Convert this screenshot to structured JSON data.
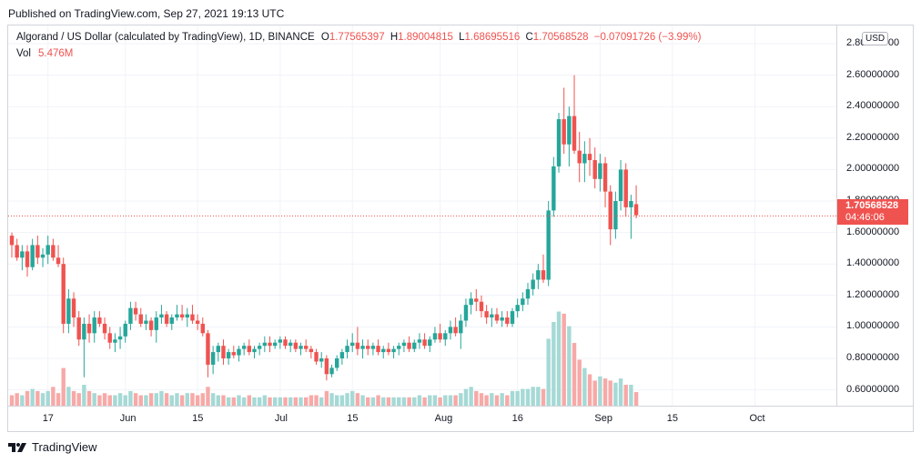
{
  "published": "Published on TradingView.com, Sep 27, 2021 19:13 UTC",
  "legend": {
    "symbol": "Algorand / US Dollar (calculated by TradingView), 1D, BINANCE",
    "o_label": "O",
    "o_value": "1.77565397",
    "h_label": "H",
    "h_value": "1.89004815",
    "l_label": "L",
    "l_value": "1.68695516",
    "c_label": "C",
    "c_value": "1.70568528",
    "change": "−0.07091726 (−3.99%)",
    "vol_label": "Vol",
    "vol_value": "5.476M"
  },
  "currency_button": "USD",
  "last_price": {
    "value": "1.70568528",
    "countdown": "04:46:06"
  },
  "brand": "TradingView",
  "colors": {
    "up": "#26a69a",
    "down": "#ef5350",
    "up_vol": "#a5d9d5",
    "down_vol": "#f7a9a7",
    "grid": "#f0f3fa"
  },
  "chart_data": {
    "type": "candlestick",
    "symbol": "ALGOUSD",
    "interval": "1D",
    "ylim": [
      0.5,
      2.85
    ],
    "y_ticks": [
      "2.80000000",
      "2.60000000",
      "2.40000000",
      "2.20000000",
      "2.00000000",
      "1.80000000",
      "1.60000000",
      "1.40000000",
      "1.20000000",
      "1.00000000",
      "0.80000000",
      "0.60000000"
    ],
    "x_ticks": [
      {
        "label": "17",
        "index": 7
      },
      {
        "label": "Jun",
        "index": 22
      },
      {
        "label": "15",
        "index": 36
      },
      {
        "label": "Jul",
        "index": 52
      },
      {
        "label": "15",
        "index": 66
      },
      {
        "label": "Aug",
        "index": 83
      },
      {
        "label": "16",
        "index": 98
      },
      {
        "label": "Sep",
        "index": 114
      },
      {
        "label": "15",
        "index": 128
      },
      {
        "label": "Oct",
        "index": 144
      }
    ],
    "ohlc": [
      [
        1.58,
        1.6,
        1.44,
        1.52
      ],
      [
        1.52,
        1.56,
        1.42,
        1.44
      ],
      [
        1.44,
        1.52,
        1.36,
        1.48
      ],
      [
        1.48,
        1.52,
        1.32,
        1.38
      ],
      [
        1.38,
        1.56,
        1.36,
        1.52
      ],
      [
        1.52,
        1.58,
        1.4,
        1.44
      ],
      [
        1.44,
        1.5,
        1.38,
        1.46
      ],
      [
        1.46,
        1.58,
        1.4,
        1.52
      ],
      [
        1.52,
        1.56,
        1.42,
        1.44
      ],
      [
        1.44,
        1.52,
        1.38,
        1.4
      ],
      [
        1.4,
        1.44,
        0.96,
        1.02
      ],
      [
        1.02,
        1.24,
        0.96,
        1.18
      ],
      [
        1.18,
        1.22,
        1.0,
        1.06
      ],
      [
        1.06,
        1.1,
        0.88,
        0.92
      ],
      [
        0.92,
        1.06,
        0.68,
        1.02
      ],
      [
        1.02,
        1.08,
        0.9,
        0.96
      ],
      [
        0.96,
        1.1,
        0.9,
        1.06
      ],
      [
        1.06,
        1.1,
        1.0,
        1.02
      ],
      [
        1.02,
        1.06,
        0.92,
        0.96
      ],
      [
        0.96,
        1.0,
        0.86,
        0.9
      ],
      [
        0.9,
        0.96,
        0.84,
        0.92
      ],
      [
        0.92,
        1.0,
        0.86,
        0.94
      ],
      [
        0.94,
        1.04,
        0.9,
        1.02
      ],
      [
        1.02,
        1.16,
        0.98,
        1.12
      ],
      [
        1.12,
        1.16,
        1.04,
        1.08
      ],
      [
        1.08,
        1.12,
        1.0,
        1.02
      ],
      [
        1.02,
        1.08,
        0.98,
        1.04
      ],
      [
        1.04,
        1.06,
        0.94,
        0.98
      ],
      [
        0.98,
        1.1,
        0.9,
        1.06
      ],
      [
        1.06,
        1.14,
        1.02,
        1.08
      ],
      [
        1.08,
        1.1,
        1.0,
        1.02
      ],
      [
        1.02,
        1.08,
        0.98,
        1.06
      ],
      [
        1.06,
        1.14,
        1.04,
        1.08
      ],
      [
        1.08,
        1.14,
        1.04,
        1.06
      ],
      [
        1.06,
        1.12,
        1.0,
        1.08
      ],
      [
        1.08,
        1.14,
        1.02,
        1.04
      ],
      [
        1.04,
        1.08,
        0.98,
        1.02
      ],
      [
        1.02,
        1.06,
        0.94,
        0.96
      ],
      [
        0.96,
        0.98,
        0.68,
        0.76
      ],
      [
        0.76,
        0.88,
        0.7,
        0.84
      ],
      [
        0.84,
        0.9,
        0.78,
        0.88
      ],
      [
        0.88,
        0.92,
        0.76,
        0.8
      ],
      [
        0.8,
        0.86,
        0.76,
        0.84
      ],
      [
        0.84,
        0.88,
        0.8,
        0.82
      ],
      [
        0.82,
        0.88,
        0.78,
        0.86
      ],
      [
        0.86,
        0.9,
        0.82,
        0.88
      ],
      [
        0.88,
        0.92,
        0.82,
        0.84
      ],
      [
        0.84,
        0.88,
        0.8,
        0.86
      ],
      [
        0.86,
        0.9,
        0.82,
        0.88
      ],
      [
        0.88,
        0.94,
        0.84,
        0.9
      ],
      [
        0.9,
        0.94,
        0.84,
        0.88
      ],
      [
        0.88,
        0.92,
        0.86,
        0.9
      ],
      [
        0.9,
        0.94,
        0.86,
        0.92
      ],
      [
        0.92,
        0.94,
        0.86,
        0.88
      ],
      [
        0.88,
        0.92,
        0.84,
        0.9
      ],
      [
        0.9,
        0.92,
        0.84,
        0.86
      ],
      [
        0.86,
        0.9,
        0.82,
        0.88
      ],
      [
        0.88,
        0.92,
        0.84,
        0.86
      ],
      [
        0.86,
        0.88,
        0.8,
        0.84
      ],
      [
        0.84,
        0.86,
        0.76,
        0.78
      ],
      [
        0.78,
        0.84,
        0.74,
        0.8
      ],
      [
        0.8,
        0.82,
        0.66,
        0.7
      ],
      [
        0.7,
        0.76,
        0.68,
        0.74
      ],
      [
        0.74,
        0.82,
        0.72,
        0.8
      ],
      [
        0.8,
        0.86,
        0.76,
        0.84
      ],
      [
        0.84,
        0.92,
        0.8,
        0.88
      ],
      [
        0.88,
        0.96,
        0.84,
        0.9
      ],
      [
        0.9,
        1.0,
        0.82,
        0.86
      ],
      [
        0.86,
        0.92,
        0.8,
        0.88
      ],
      [
        0.88,
        0.92,
        0.82,
        0.86
      ],
      [
        0.86,
        0.9,
        0.82,
        0.88
      ],
      [
        0.88,
        0.92,
        0.82,
        0.84
      ],
      [
        0.84,
        0.88,
        0.8,
        0.86
      ],
      [
        0.86,
        0.9,
        0.82,
        0.84
      ],
      [
        0.84,
        0.88,
        0.8,
        0.86
      ],
      [
        0.86,
        0.9,
        0.82,
        0.88
      ],
      [
        0.88,
        0.92,
        0.84,
        0.9
      ],
      [
        0.9,
        0.94,
        0.84,
        0.86
      ],
      [
        0.86,
        0.92,
        0.84,
        0.9
      ],
      [
        0.9,
        0.96,
        0.86,
        0.92
      ],
      [
        0.92,
        0.96,
        0.86,
        0.88
      ],
      [
        0.88,
        0.94,
        0.84,
        0.92
      ],
      [
        0.92,
        1.0,
        0.9,
        0.96
      ],
      [
        0.96,
        1.02,
        0.9,
        0.92
      ],
      [
        0.92,
        0.98,
        0.88,
        0.96
      ],
      [
        0.96,
        1.04,
        0.92,
        1.0
      ],
      [
        1.0,
        1.06,
        0.94,
        0.96
      ],
      [
        0.96,
        1.08,
        0.86,
        1.04
      ],
      [
        1.04,
        1.18,
        1.0,
        1.14
      ],
      [
        1.14,
        1.22,
        1.08,
        1.18
      ],
      [
        1.18,
        1.24,
        1.1,
        1.16
      ],
      [
        1.16,
        1.2,
        1.06,
        1.1
      ],
      [
        1.1,
        1.14,
        1.02,
        1.06
      ],
      [
        1.06,
        1.12,
        1.0,
        1.08
      ],
      [
        1.08,
        1.12,
        1.02,
        1.04
      ],
      [
        1.04,
        1.1,
        1.0,
        1.06
      ],
      [
        1.06,
        1.1,
        1.0,
        1.02
      ],
      [
        1.02,
        1.12,
        1.0,
        1.1
      ],
      [
        1.1,
        1.18,
        1.06,
        1.14
      ],
      [
        1.14,
        1.22,
        1.1,
        1.18
      ],
      [
        1.18,
        1.28,
        1.14,
        1.24
      ],
      [
        1.24,
        1.34,
        1.2,
        1.3
      ],
      [
        1.3,
        1.4,
        1.24,
        1.36
      ],
      [
        1.36,
        1.46,
        1.28,
        1.3
      ],
      [
        1.3,
        1.8,
        1.26,
        1.74
      ],
      [
        1.74,
        2.08,
        1.7,
        2.02
      ],
      [
        2.02,
        2.36,
        1.98,
        2.32
      ],
      [
        2.32,
        2.52,
        2.1,
        2.16
      ],
      [
        2.16,
        2.4,
        2.02,
        2.34
      ],
      [
        2.34,
        2.6,
        2.1,
        2.12
      ],
      [
        2.12,
        2.24,
        1.92,
        2.04
      ],
      [
        2.04,
        2.18,
        1.92,
        2.1
      ],
      [
        2.1,
        2.2,
        1.96,
        2.06
      ],
      [
        2.06,
        2.14,
        1.88,
        1.94
      ],
      [
        1.94,
        2.1,
        1.86,
        2.04
      ],
      [
        2.04,
        2.08,
        1.76,
        1.86
      ],
      [
        1.86,
        1.9,
        1.52,
        1.62
      ],
      [
        1.62,
        1.86,
        1.56,
        1.8
      ],
      [
        1.8,
        2.06,
        1.74,
        2.0
      ],
      [
        2.0,
        2.04,
        1.7,
        1.76
      ],
      [
        1.76,
        1.84,
        1.56,
        1.8
      ],
      [
        1.78,
        1.9,
        1.69,
        1.71
      ]
    ],
    "volume_up_down_note": "volume bars colored by candle direction",
    "volume": [
      5,
      6,
      5,
      7,
      8,
      7,
      6,
      7,
      9,
      6,
      18,
      9,
      7,
      6,
      10,
      7,
      6,
      5,
      6,
      5,
      5,
      6,
      5,
      7,
      6,
      5,
      5,
      6,
      6,
      7,
      6,
      5,
      6,
      5,
      6,
      6,
      5,
      6,
      9,
      6,
      5,
      5,
      4,
      4,
      5,
      4,
      5,
      4,
      4,
      5,
      4,
      4,
      4,
      4,
      4,
      4,
      4,
      4,
      5,
      5,
      4,
      7,
      6,
      5,
      5,
      6,
      7,
      6,
      5,
      4,
      4,
      5,
      4,
      4,
      4,
      4,
      4,
      4,
      4,
      5,
      4,
      5,
      5,
      4,
      5,
      5,
      5,
      6,
      8,
      9,
      7,
      6,
      5,
      6,
      5,
      6,
      5,
      7,
      7,
      8,
      8,
      9,
      9,
      8,
      32,
      40,
      45,
      44,
      38,
      30,
      22,
      18,
      15,
      12,
      14,
      13,
      12,
      11,
      13,
      10,
      10,
      6.5
    ]
  }
}
